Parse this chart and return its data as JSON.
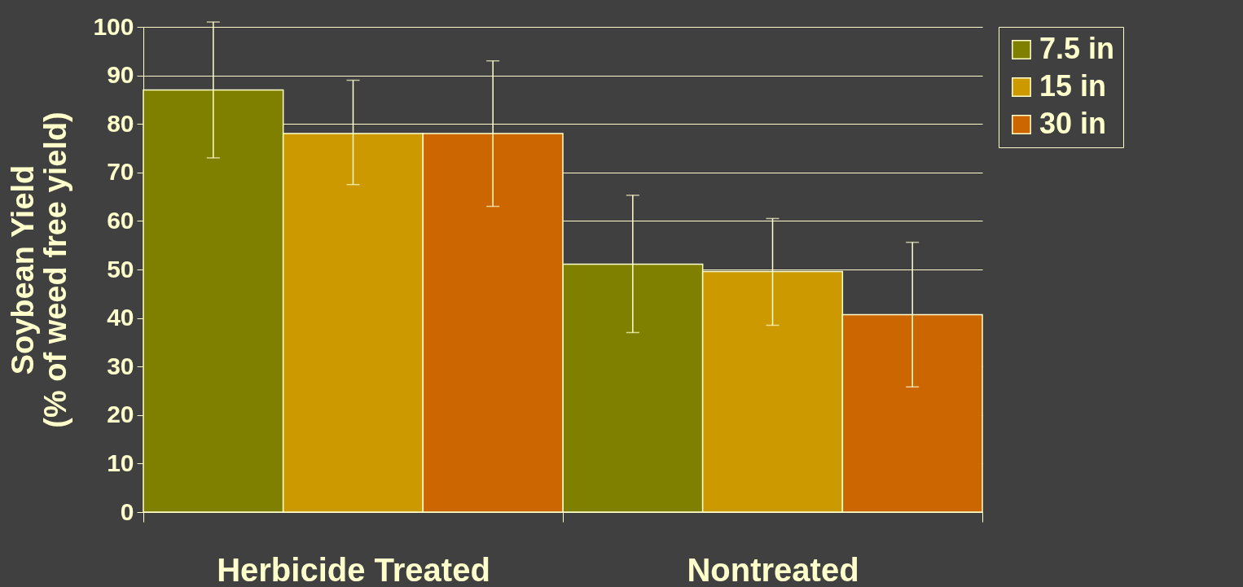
{
  "chart_data": {
    "type": "bar",
    "ylabel": "Soybean Yield\n(% of weed free yield)",
    "categories": [
      "Herbicide Treated",
      "Nontreated"
    ],
    "series": [
      {
        "name": "7.5 in",
        "color": "#808000",
        "values": [
          87,
          51.1
        ],
        "errors": [
          [
            73,
            101
          ],
          [
            37,
            65.3
          ]
        ]
      },
      {
        "name": "15 in",
        "color": "#cc9900",
        "values": [
          78,
          49.6
        ],
        "errors": [
          [
            67.5,
            89
          ],
          [
            38.5,
            60.5
          ]
        ]
      },
      {
        "name": "30 in",
        "color": "#cc6600",
        "values": [
          78,
          40.7
        ],
        "errors": [
          [
            63,
            93
          ],
          [
            25.8,
            55.6
          ]
        ]
      }
    ],
    "ylim": [
      0,
      100
    ],
    "yticks": [
      0,
      10,
      20,
      30,
      40,
      50,
      60,
      70,
      80,
      90,
      100
    ],
    "grid": "y",
    "legend": "right"
  }
}
